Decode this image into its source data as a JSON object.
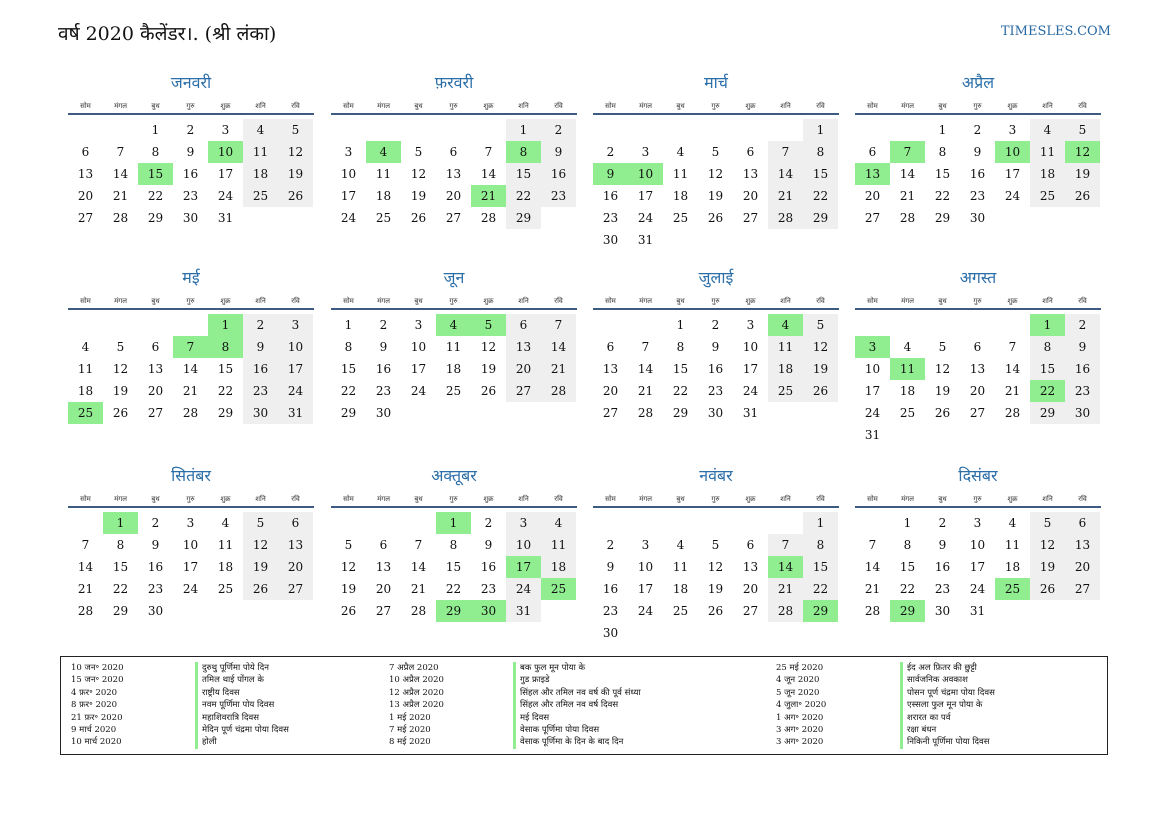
{
  "header": {
    "title": "वर्ष 2020 कैलेंडर।. (श्री लंका)",
    "site": "TIMESLES.COM"
  },
  "weekdays": [
    "सोम",
    "मंगल",
    "बुध",
    "गुरु",
    "शुक्र",
    "शनि",
    "रवि"
  ],
  "months": [
    {
      "name": "जनवरी",
      "offset": 2,
      "days": 31,
      "holidays": [
        10,
        15
      ]
    },
    {
      "name": "फ़रवरी",
      "offset": 5,
      "days": 29,
      "holidays": [
        4,
        8,
        21
      ]
    },
    {
      "name": "मार्च",
      "offset": 6,
      "days": 31,
      "holidays": [
        9,
        10
      ]
    },
    {
      "name": "अप्रैल",
      "offset": 2,
      "days": 30,
      "holidays": [
        7,
        10,
        12,
        13
      ]
    },
    {
      "name": "मई",
      "offset": 4,
      "days": 31,
      "holidays": [
        1,
        7,
        8,
        25
      ]
    },
    {
      "name": "जून",
      "offset": 0,
      "days": 30,
      "holidays": [
        4,
        5
      ]
    },
    {
      "name": "जुलाई",
      "offset": 2,
      "days": 31,
      "holidays": [
        4
      ]
    },
    {
      "name": "अगस्त",
      "offset": 5,
      "days": 31,
      "holidays": [
        1,
        3,
        11,
        22
      ]
    },
    {
      "name": "सितंबर",
      "offset": 1,
      "days": 30,
      "holidays": [
        1
      ]
    },
    {
      "name": "अक्तूबर",
      "offset": 3,
      "days": 31,
      "holidays": [
        1,
        17,
        25,
        29,
        30
      ]
    },
    {
      "name": "नवंबर",
      "offset": 6,
      "days": 30,
      "holidays": [
        14,
        29
      ]
    },
    {
      "name": "दिसंबर",
      "offset": 1,
      "days": 31,
      "holidays": [
        25,
        29
      ]
    }
  ],
  "legend": [
    [
      {
        "date": "10 जन॰ 2020",
        "name": "दुरुथु पूर्णिमा पोये दिन"
      },
      {
        "date": "15 जन॰ 2020",
        "name": "तमिल थाई पोंगल के"
      },
      {
        "date": "4 फ़र॰ 2020",
        "name": "राष्ट्रीय दिवस"
      },
      {
        "date": "8 फ़र॰ 2020",
        "name": "नवम पूर्णिमा पोय दिवस"
      },
      {
        "date": "21 फ़र॰ 2020",
        "name": "महाशिवरात्रि दिवस"
      },
      {
        "date": "9 मार्च 2020",
        "name": "मेदिन पूर्ण चंद्रमा पोया दिवस"
      },
      {
        "date": "10 मार्च 2020",
        "name": "होली"
      }
    ],
    [
      {
        "date": "7 अप्रैल 2020",
        "name": "बक फुल मून पोया के"
      },
      {
        "date": "10 अप्रैल 2020",
        "name": "गुड फ्राइडे"
      },
      {
        "date": "12 अप्रैल 2020",
        "name": "सिंहल और तमिल नव वर्ष की पूर्व संध्या"
      },
      {
        "date": "13 अप्रैल 2020",
        "name": "सिंहल और तमिल नव वर्ष दिवस"
      },
      {
        "date": "1 मई 2020",
        "name": "मई दिवस"
      },
      {
        "date": "7 मई 2020",
        "name": "वेसाक पूर्णिमा पोया दिवस"
      },
      {
        "date": "8 मई 2020",
        "name": "वेसाक पूर्णिमा के दिन के बाद दिन"
      }
    ],
    [
      {
        "date": "25 मई 2020",
        "name": "ईद अल फ़ितर की छुट्टी"
      },
      {
        "date": "4 जून 2020",
        "name": "सार्वजनिक अवकाश"
      },
      {
        "date": "5 जून 2020",
        "name": "पोसन पूर्ण चंद्रमा पोया दिवस"
      },
      {
        "date": "4 जुला॰ 2020",
        "name": "एस्सला फुल मून पोया के"
      },
      {
        "date": "1 अग॰ 2020",
        "name": "शरारत का पर्व"
      },
      {
        "date": "3 अग॰ 2020",
        "name": "रक्षा बंधन"
      },
      {
        "date": "3 अग॰ 2020",
        "name": "निकिनी पूर्णिमा पोया दिवस"
      }
    ]
  ]
}
